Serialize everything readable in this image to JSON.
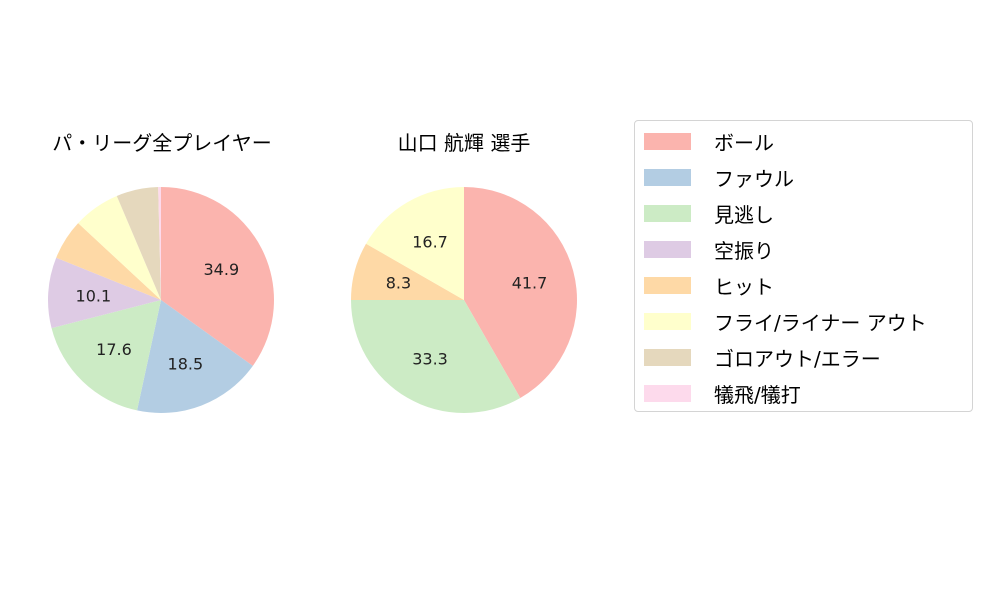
{
  "chart_data": [
    {
      "type": "pie",
      "title": "パ・リーグ全プレイヤー",
      "categories": [
        "ボール",
        "ファウル",
        "見逃し",
        "空振り",
        "ヒット",
        "フライ/ライナー アウト",
        "ゴロアウト/エラー",
        "犠飛/犠打"
      ],
      "values": [
        34.9,
        18.5,
        17.6,
        10.1,
        5.8,
        6.7,
        6.0,
        0.4
      ],
      "labels_shown": [
        "34.9",
        "18.5",
        "17.6",
        "10.1",
        "",
        "",
        "",
        ""
      ],
      "start_angle": 90,
      "direction": "clockwise"
    },
    {
      "type": "pie",
      "title": "山口 航輝  選手",
      "categories": [
        "ボール",
        "見逃し",
        "ヒット",
        "フライ/ライナー アウト"
      ],
      "values": [
        41.7,
        33.3,
        8.3,
        16.7
      ],
      "labels_shown": [
        "41.7",
        "33.3",
        "8.3",
        "16.7"
      ],
      "start_angle": 90,
      "direction": "clockwise"
    }
  ],
  "legend": {
    "position": "right",
    "items": [
      {
        "label": "ボール",
        "color": "#fbb4ae"
      },
      {
        "label": "ファウル",
        "color": "#b3cde3"
      },
      {
        "label": "見逃し",
        "color": "#ccebc5"
      },
      {
        "label": "空振り",
        "color": "#decbe4"
      },
      {
        "label": "ヒット",
        "color": "#fed9a6"
      },
      {
        "label": "フライ/ライナー アウト",
        "color": "#ffffcc"
      },
      {
        "label": "ゴロアウト/エラー",
        "color": "#e5d8bd"
      },
      {
        "label": "犠飛/犠打",
        "color": "#fddaec"
      }
    ]
  },
  "titles": {
    "left": "パ・リーグ全プレイヤー",
    "right": "山口 航輝  選手"
  }
}
